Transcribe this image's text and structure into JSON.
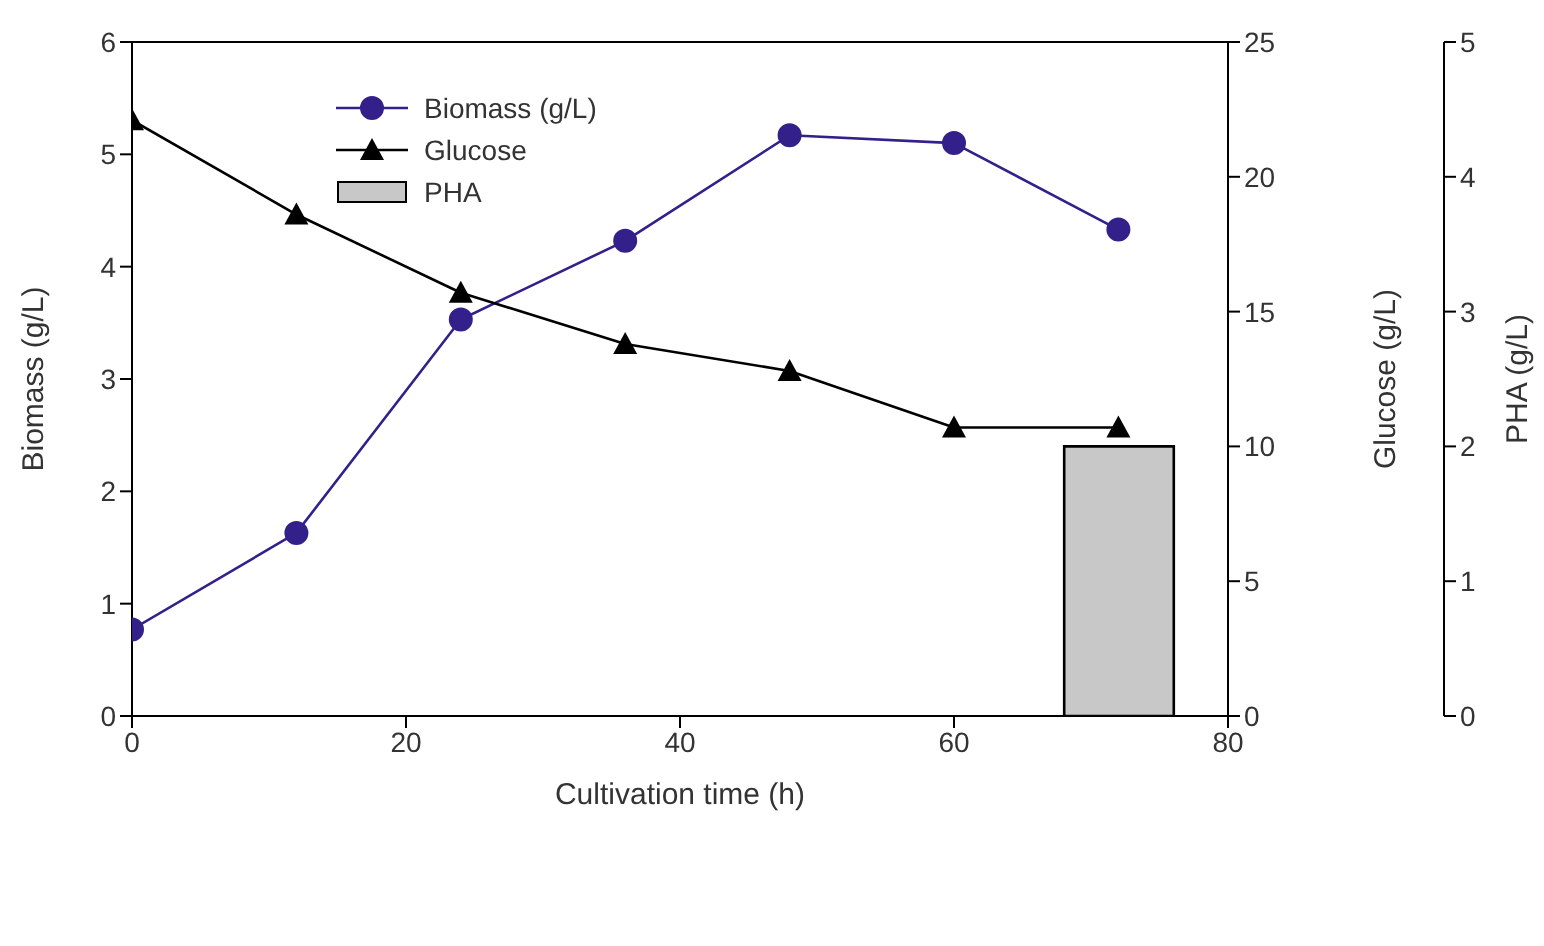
{
  "chart_data": {
    "type": "line",
    "xlabel": "Cultivation time (h)",
    "ylabel": "Biomass (g/L)",
    "y2label": "Glucose (g/L)",
    "y3label": "PHA (g/L)",
    "x": [
      0,
      12,
      24,
      36,
      48,
      60,
      72
    ],
    "series": [
      {
        "name": "Biomass (g/L)",
        "color": "#34208a",
        "marker": "circle",
        "values": [
          0.77,
          1.63,
          3.53,
          4.23,
          5.17,
          5.1,
          4.33
        ]
      },
      {
        "name": "Glucose",
        "color": "#000000",
        "marker": "triangle",
        "axis": "y2",
        "values": [
          22.1,
          18.6,
          15.7,
          13.8,
          12.8,
          10.7,
          10.7
        ]
      },
      {
        "name": "PHA",
        "type": "bar",
        "color": "#c8c8c8",
        "axis": "y3",
        "values": [
          null,
          null,
          null,
          null,
          null,
          null,
          2.0
        ]
      }
    ],
    "xlim": [
      0,
      80
    ],
    "xticks": [
      0,
      20,
      40,
      60,
      80
    ],
    "ylim": [
      0,
      6
    ],
    "yticks": [
      0,
      1,
      2,
      3,
      4,
      5,
      6
    ],
    "y2lim": [
      0,
      25
    ],
    "y2ticks": [
      0,
      5,
      10,
      15,
      20,
      25
    ],
    "y3lim": [
      0,
      5
    ],
    "y3ticks": [
      0,
      1,
      2,
      3,
      4,
      5
    ],
    "grid": false,
    "legend": "top left"
  }
}
